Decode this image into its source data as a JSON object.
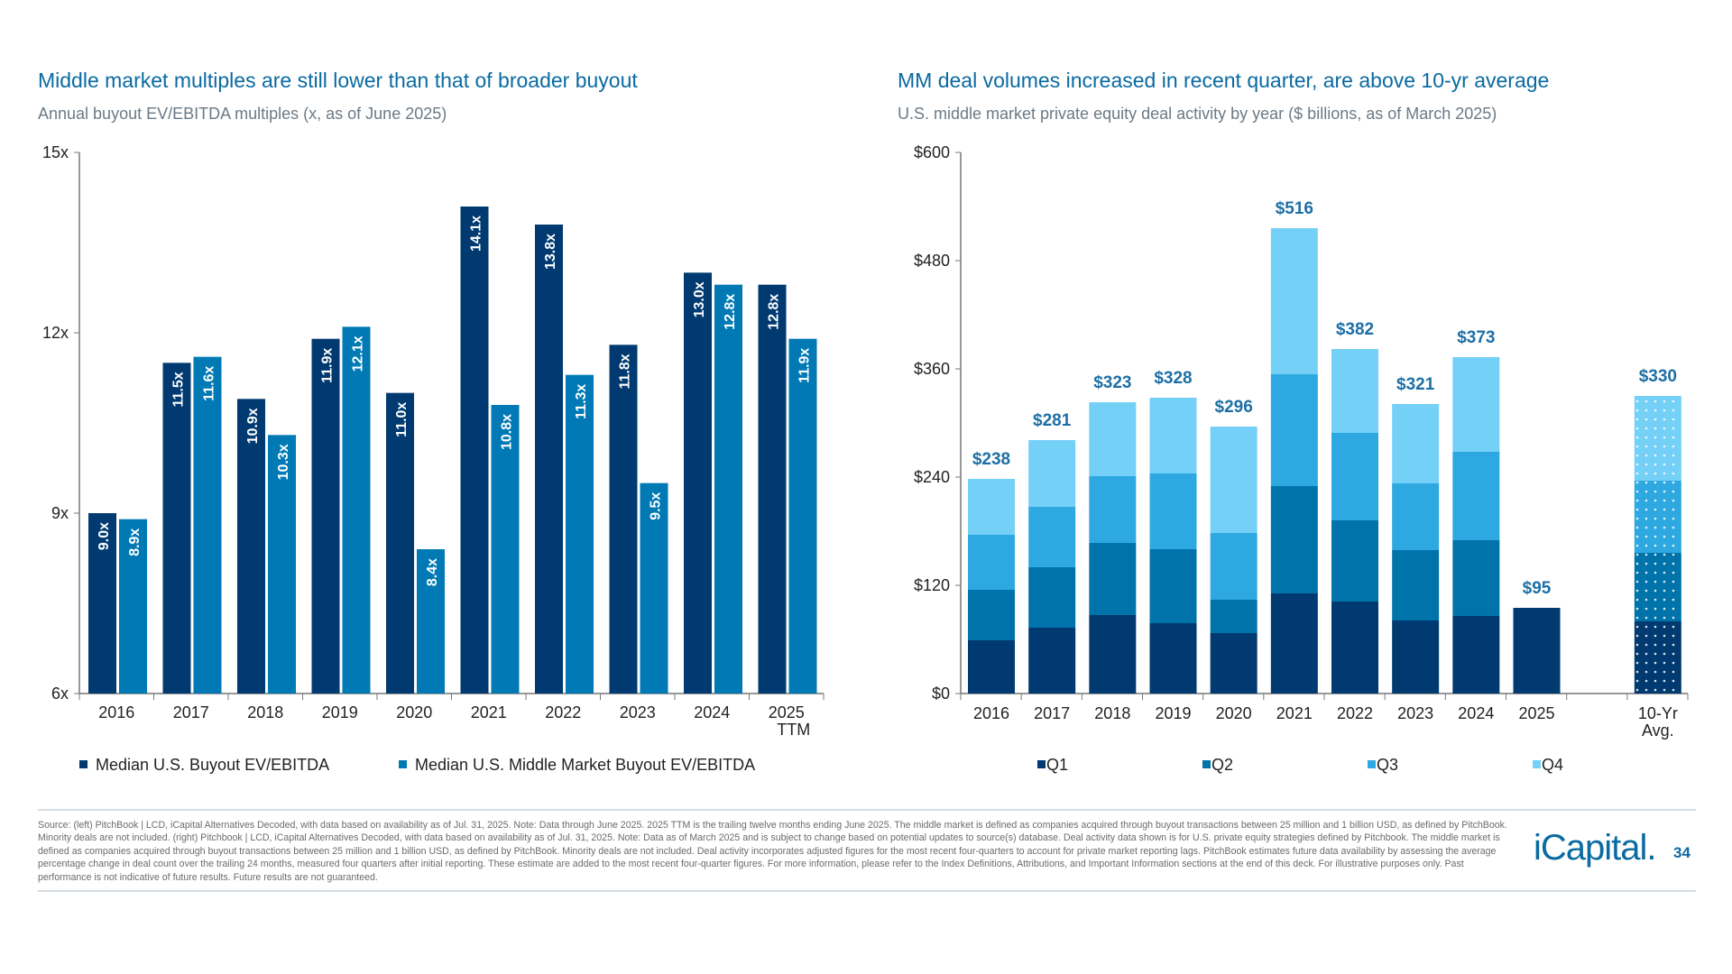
{
  "chart_data": [
    {
      "type": "bar",
      "title": "Middle market multiples are still lower than that of broader buyout",
      "subtitle": "Annual buyout EV/EBITDA multiples (x, as of June 2025)",
      "categories": [
        "2016",
        "2017",
        "2018",
        "2019",
        "2020",
        "2021",
        "2022",
        "2023",
        "2024",
        "2025 TTM"
      ],
      "series": [
        {
          "name": "Median U.S. Buyout EV/EBITDA",
          "values": [
            9.0,
            11.5,
            10.9,
            11.9,
            11.0,
            14.1,
            13.8,
            11.8,
            13.0,
            12.8
          ],
          "color": "#003a70"
        },
        {
          "name": "Median U.S. Middle Market Buyout EV/EBITDA",
          "values": [
            8.9,
            11.6,
            10.3,
            12.1,
            8.4,
            10.8,
            11.3,
            9.5,
            12.8,
            11.9
          ],
          "color": "#0079b5"
        }
      ],
      "ylim": [
        6,
        15
      ],
      "yticks": [
        "6x",
        "9x",
        "12x",
        "15x"
      ],
      "legend": "bottom",
      "grid": false
    },
    {
      "type": "stacked-bar",
      "title": "MM deal volumes increased in recent quarter, are above 10-yr average",
      "subtitle": "U.S. middle market private equity deal activity by year ($ billions, as of March 2025)",
      "categories": [
        "2016",
        "2017",
        "2018",
        "2019",
        "2020",
        "2021",
        "2022",
        "2023",
        "2024",
        "2025",
        "",
        "10-Yr Avg."
      ],
      "series": [
        {
          "name": "Q1",
          "values": [
            59,
            73,
            87,
            78,
            67,
            111,
            102,
            81,
            86,
            95,
            null,
            80
          ],
          "color": "#003a70"
        },
        {
          "name": "Q2",
          "values": [
            56,
            67,
            80,
            82,
            37,
            119,
            90,
            78,
            84,
            null,
            null,
            76
          ],
          "color": "#0073aa"
        },
        {
          "name": "Q3",
          "values": [
            61,
            67,
            74,
            84,
            74,
            124,
            97,
            74,
            98,
            null,
            null,
            80
          ],
          "color": "#2ea8e0"
        },
        {
          "name": "Q4",
          "values": [
            62,
            74,
            82,
            84,
            118,
            162,
            93,
            88,
            105,
            null,
            null,
            94
          ],
          "color": "#74d0f7"
        }
      ],
      "totals": [
        "$238",
        "$281",
        "$323",
        "$328",
        "$296",
        "$516",
        "$382",
        "$321",
        "$373",
        "$95",
        "",
        "$330"
      ],
      "ylim": [
        0,
        600
      ],
      "yticks": [
        "$0",
        "$120",
        "$240",
        "$360",
        "$480",
        "$600"
      ],
      "legend": "bottom",
      "grid": false
    }
  ],
  "footnote": "Source: (left) PitchBook | LCD, iCapital Alternatives Decoded, with data based on availability as of Jul. 31, 2025. Note: Data through June 2025. 2025 TTM is the trailing twelve months ending June 2025. The middle market is defined as companies acquired through buyout transactions between 25 million and 1 billion USD, as defined by PitchBook. Minority deals are not included. (right) Pitchbook | LCD, iCapital Alternatives Decoded, with data based on availability as of Jul. 31, 2025. Note: Data as of March 2025 and is subject to change based on potential updates to source(s) database. Deal activity data shown is for U.S. private equity strategies defined by Pitchbook. The middle market is defined as companies acquired through buyout transactions between 25 million and 1 billion USD, as defined by PitchBook. Minority deals are not included. Deal activity incorporates adjusted figures for the most recent four-quarters to account for private market reporting lags. PitchBook estimates future data availability by assessing the average percentage change in deal count over the trailing 24 months, measured four quarters after initial reporting. These estimate are added to the most recent four-quarter figures. For more information, please refer to the Index Definitions, Attributions, and Important Information sections at the end of this deck. For illustrative purposes only. Past performance is not indicative of future results. Future results are not guaranteed.",
  "logo": "iCapital.",
  "page_number": "34"
}
